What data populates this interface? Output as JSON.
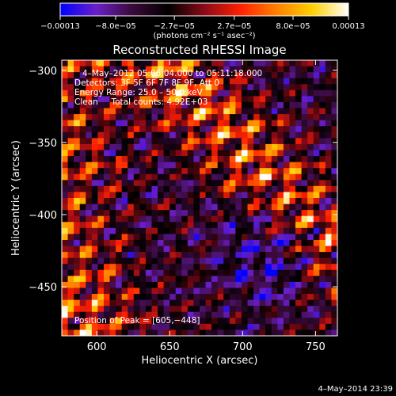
{
  "chart_data": {
    "type": "heatmap",
    "title": "Reconstructed RHESSI Image",
    "xlabel": "Heliocentric X (arcsec)",
    "ylabel": "Heliocentric Y (arcsec)",
    "xlim": [
      576,
      765
    ],
    "ylim": [
      -484,
      -293
    ],
    "x_ticks": [
      600,
      650,
      700,
      750
    ],
    "y_ticks": [
      -300,
      -350,
      -400,
      -450
    ],
    "x_tick_labels": [
      "600",
      "650",
      "700",
      "750"
    ],
    "y_tick_labels": [
      "−300",
      "−350",
      "−400",
      "−450"
    ],
    "grid": false,
    "colorbar": {
      "range": [
        -0.00013,
        0.00013
      ],
      "tick_values": [
        -0.00013,
        -8e-05,
        -2.7e-05,
        2.7e-05,
        8e-05,
        0.00013
      ],
      "tick_labels": [
        "−0.00013",
        "−8.0e−05",
        "−2.7e−05",
        "2.7e−05",
        "8.0e−05",
        "0.00013"
      ],
      "units": "(photons cm⁻² s⁻¹ asec⁻²)",
      "colormap_stops": [
        "#0000ff",
        "#6b1fc8",
        "#3a0a3a",
        "#000000",
        "#8a0a18",
        "#ff2000",
        "#ff8000",
        "#ffd000",
        "#ffffff"
      ]
    },
    "annotations": [
      "4–May–2012 05:06:04.000 to 05:11:18.000",
      "Detectors: 3F 5F 6F 7F 8F 9F, Att 0",
      "Energy Range: 25.0 – 50.0 keV",
      "Clean     Total counts: 4.92E+03"
    ],
    "peak_label": "Position of Peak = [605,−448]",
    "peak": [
      605,
      -448
    ]
  },
  "footer": {
    "date": "4–May–2014 23:39"
  }
}
